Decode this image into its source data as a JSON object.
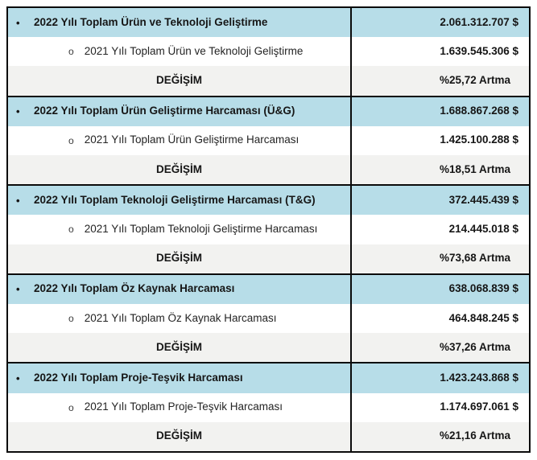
{
  "table": {
    "title_semantic": "2022 vs 2021 yili Ar-Ge harcamalari karsilastirma tablosu",
    "bullet_level1": "•",
    "bullet_level2": "o",
    "change_row_label": "DEĞİŞİM",
    "colors": {
      "header_row_blue": "#B7DDE8",
      "change_row_gray": "#F2F2F0",
      "border_black": "#0B0B0B"
    },
    "sections": [
      {
        "current": {
          "label": "2022 Yılı Toplam Ürün ve Teknoloji Geliştirme",
          "value": "2.061.312.707 $"
        },
        "previous": {
          "label": "2021 Yılı Toplam Ürün ve Teknoloji Geliştirme",
          "value": "1.639.545.306 $"
        },
        "change": {
          "label": "DEĞİŞİM",
          "value": "%25,72 Artma"
        }
      },
      {
        "current": {
          "label": "2022 Yılı Toplam Ürün Geliştirme Harcaması (Ü&G)",
          "value": "1.688.867.268 $"
        },
        "previous": {
          "label": "2021 Yılı Toplam Ürün Geliştirme Harcaması",
          "value": "1.425.100.288 $"
        },
        "change": {
          "label": "DEĞİŞİM",
          "value": "%18,51 Artma"
        }
      },
      {
        "current": {
          "label": "2022 Yılı Toplam Teknoloji Geliştirme Harcaması (T&G)",
          "value": "372.445.439 $"
        },
        "previous": {
          "label": "2021 Yılı Toplam Teknoloji Geliştirme Harcaması",
          "value": "214.445.018 $"
        },
        "change": {
          "label": "DEĞİŞİM",
          "value": "%73,68 Artma"
        }
      },
      {
        "current": {
          "label": "2022 Yılı Toplam Öz Kaynak Harcaması",
          "value": "638.068.839 $"
        },
        "previous": {
          "label": "2021 Yılı Toplam Öz Kaynak Harcaması",
          "value": "464.848.245 $"
        },
        "change": {
          "label": "DEĞİŞİM",
          "value": "%37,26 Artma"
        }
      },
      {
        "current": {
          "label": "2022 Yılı Toplam Proje-Teşvik Harcaması",
          "value": "1.423.243.868 $"
        },
        "previous": {
          "label": "2021 Yılı Toplam Proje-Teşvik Harcaması",
          "value": "1.174.697.061 $"
        },
        "change": {
          "label": "DEĞİŞİM",
          "value": "%21,16 Artma"
        }
      }
    ]
  }
}
